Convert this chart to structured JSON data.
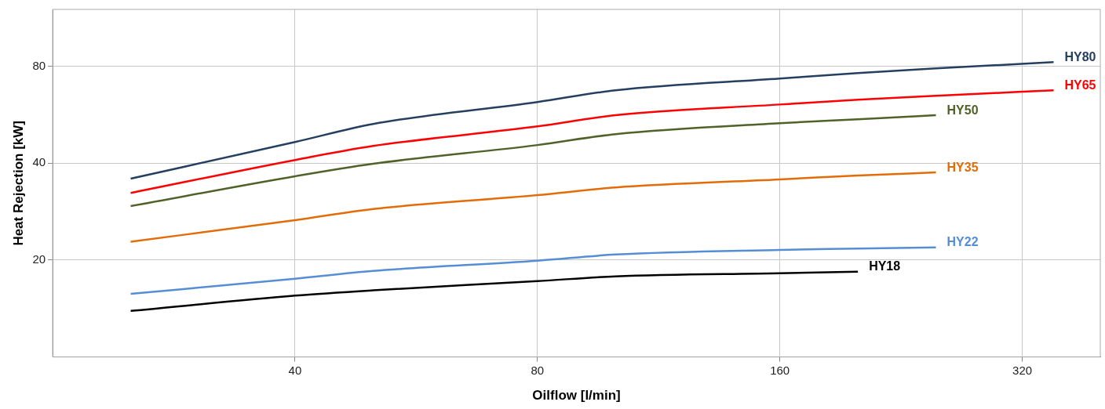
{
  "chart_data": {
    "type": "line",
    "xlabel": "Oilflow [l/min]",
    "ylabel": "Heat Rejection [kW]",
    "log": "xy",
    "xlim": [
      20,
      400
    ],
    "ylim": [
      10,
      120
    ],
    "xticks": [
      40,
      80,
      160,
      320
    ],
    "yticks": [
      20,
      40,
      80
    ],
    "grid": true,
    "legend": false,
    "marker": "none",
    "line_style": "solid",
    "series": [
      {
        "name": "HY80",
        "color": "#243f60",
        "x": [
          25,
          40,
          50,
          80,
          100,
          160,
          200,
          250,
          350
        ],
        "values": [
          35.8,
          46.5,
          52.9,
          61.9,
          67.3,
          73.2,
          76.1,
          78.7,
          82.3
        ]
      },
      {
        "name": "HY65",
        "color": "#ff0000",
        "x": [
          25,
          40,
          50,
          80,
          100,
          160,
          200,
          250,
          350
        ],
        "values": [
          32.3,
          40.9,
          45.2,
          52.0,
          56.3,
          60.8,
          62.9,
          64.7,
          67.3
        ]
      },
      {
        "name": "HY50",
        "color": "#4f6228",
        "x": [
          25,
          40,
          50,
          80,
          100,
          160,
          200,
          250
        ],
        "values": [
          29.4,
          36.4,
          39.8,
          45.5,
          49.2,
          53.2,
          54.7,
          56.3
        ]
      },
      {
        "name": "HY35",
        "color": "#e36c09",
        "x": [
          25,
          40,
          50,
          80,
          100,
          160,
          200,
          250
        ],
        "values": [
          22.8,
          26.6,
          28.8,
          31.8,
          33.6,
          35.6,
          36.6,
          37.4
        ]
      },
      {
        "name": "HY22",
        "color": "#558ed5",
        "x": [
          25,
          40,
          50,
          80,
          100,
          160,
          200,
          250
        ],
        "values": [
          15.7,
          17.5,
          18.5,
          19.9,
          20.8,
          21.5,
          21.7,
          21.9
        ]
      },
      {
        "name": "HY18",
        "color": "#000000",
        "x": [
          25,
          40,
          50,
          80,
          100,
          160,
          200
        ],
        "values": [
          13.9,
          15.5,
          16.1,
          17.2,
          17.8,
          18.2,
          18.4
        ]
      }
    ]
  }
}
